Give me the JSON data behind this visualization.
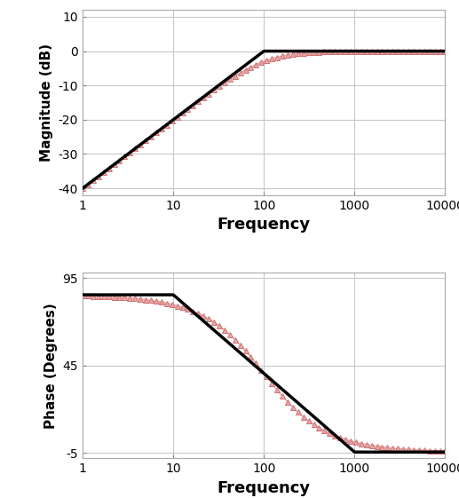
{
  "fig_width": 5.17,
  "fig_height": 5.61,
  "dpi": 100,
  "background_color": "#ffffff",
  "plot_bg_color": "#ffffff",
  "freq_min": 1,
  "freq_max": 10000,
  "mag_ylim": [
    -42,
    12
  ],
  "mag_yticks": [
    -40,
    -30,
    -20,
    -10,
    0,
    10
  ],
  "phase_ylim": [
    -8,
    98
  ],
  "phase_yticks": [
    -5,
    45,
    95
  ],
  "marker_color": "#e8a8a8",
  "marker_edge_color": "#cc7070",
  "line_color": "#000000",
  "xlabel": "Frequency",
  "mag_ylabel": "Magnitude (dB)",
  "phase_ylabel": "Phase (Degrees)",
  "xlabel_fontsize": 13,
  "ylabel_fontsize": 11,
  "tick_fontsize": 10,
  "grid_color": "#c8c8c8",
  "fc": 100,
  "phase_fc": 100,
  "marker_size": 5,
  "line_width": 2.5,
  "phase_shift": -4.5,
  "phase_high_val": 85.5,
  "phase_low_val": -4.5,
  "f_low_phase": 10,
  "f_high_phase": 1000,
  "n_markers": 70,
  "n_curve": 500
}
